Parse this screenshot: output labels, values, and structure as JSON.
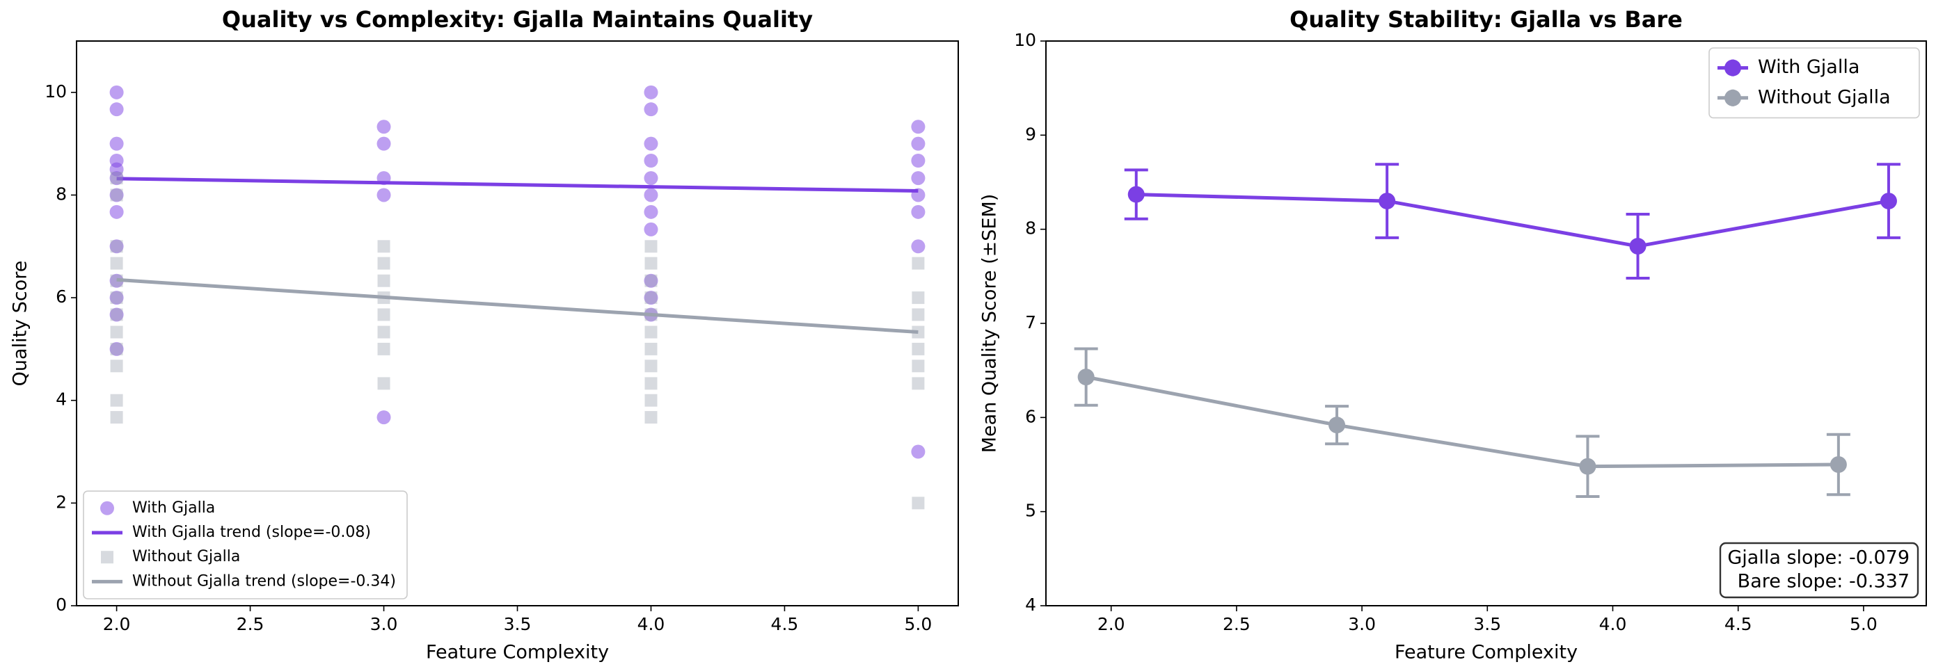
{
  "chart_data": [
    {
      "type": "scatter",
      "title": "Quality vs Complexity: Gjalla Maintains Quality",
      "x_label": "Feature Complexity",
      "y_label": "Quality Score",
      "xlim": [
        1.85,
        5.15
      ],
      "ylim": [
        0,
        11
      ],
      "xticks": [
        {
          "value": 2,
          "label": "2.0"
        },
        {
          "value": 2.5,
          "label": "2.5"
        },
        {
          "value": 3,
          "label": "3.0"
        },
        {
          "value": 3.5,
          "label": "3.5"
        },
        {
          "value": 4,
          "label": "4.0"
        },
        {
          "value": 4.5,
          "label": "4.5"
        },
        {
          "value": 5,
          "label": "5.0"
        }
      ],
      "yticks": [
        0,
        2,
        4,
        6,
        8,
        10
      ],
      "legend": "lower left",
      "series": [
        {
          "name": "With Gjalla",
          "style": "scatter",
          "marker": "circle",
          "color": "#7b3fe4",
          "x": [
            2,
            2,
            2,
            2,
            2,
            2,
            2,
            2,
            2,
            2,
            2,
            2,
            2,
            3,
            3,
            3,
            3,
            3,
            4,
            4,
            4,
            4,
            4,
            4,
            4,
            4,
            4,
            4,
            4,
            5,
            5,
            5,
            5,
            5,
            5,
            5,
            5
          ],
          "values": [
            10,
            9.67,
            9,
            8.67,
            8.5,
            8.33,
            8,
            7.67,
            7,
            6.33,
            6,
            5.67,
            5,
            9.33,
            9,
            8.33,
            8,
            3.67,
            10,
            9.67,
            9,
            8.67,
            8.33,
            8,
            7.67,
            7.33,
            6.33,
            6,
            5.67,
            9.33,
            9,
            8.67,
            8.33,
            8,
            7.67,
            7,
            3
          ]
        },
        {
          "name": "With Gjalla trend (slope=-0.08)",
          "style": "line",
          "color": "#7b3fe4",
          "x": [
            2,
            5
          ],
          "values": [
            8.32,
            8.08
          ]
        },
        {
          "name": "Without Gjalla",
          "style": "scatter",
          "marker": "square",
          "color": "#9ca3af",
          "x": [
            2,
            2,
            2,
            2,
            2,
            2,
            2,
            2,
            2,
            2,
            2,
            2,
            3,
            3,
            3,
            3,
            3,
            3,
            3,
            3,
            4,
            4,
            4,
            4,
            4,
            4,
            4,
            4,
            4,
            4,
            4,
            5,
            5,
            5,
            5,
            5,
            5,
            5,
            5
          ],
          "values": [
            8.33,
            8,
            7,
            6.67,
            6.33,
            6,
            5.67,
            5.33,
            5,
            4.67,
            4,
            3.67,
            7,
            6.67,
            6.33,
            6,
            5.67,
            5.33,
            5,
            4.33,
            7,
            6.67,
            6.33,
            6,
            5.67,
            5.33,
            5,
            4.67,
            4.33,
            4,
            3.67,
            6.67,
            6,
            5.67,
            5.33,
            5,
            4.67,
            4.33,
            2
          ]
        },
        {
          "name": "Without Gjalla trend (slope=-0.34)",
          "style": "line",
          "color": "#9ca3af",
          "x": [
            2,
            5
          ],
          "values": [
            6.35,
            5.33
          ]
        }
      ]
    },
    {
      "type": "errorbar",
      "title": "Quality Stability: Gjalla vs Bare",
      "x_label": "Feature Complexity",
      "y_label": "Mean Quality Score (±SEM)",
      "xlim": [
        1.74,
        5.25
      ],
      "ylim": [
        4,
        10
      ],
      "xticks": [
        {
          "value": 2,
          "label": "2.0"
        },
        {
          "value": 2.5,
          "label": "2.5"
        },
        {
          "value": 3,
          "label": "3.0"
        },
        {
          "value": 3.5,
          "label": "3.5"
        },
        {
          "value": 4,
          "label": "4.0"
        },
        {
          "value": 4.5,
          "label": "4.5"
        },
        {
          "value": 5,
          "label": "5.0"
        }
      ],
      "yticks": [
        4,
        5,
        6,
        7,
        8,
        9,
        10
      ],
      "legend": "upper right",
      "annotation": [
        "Gjalla slope: -0.079",
        "Bare slope: -0.337"
      ],
      "series": [
        {
          "name": "With Gjalla",
          "color": "#7b3fe4",
          "x": [
            2.1,
            3.1,
            4.1,
            5.1
          ],
          "values": [
            8.37,
            8.3,
            7.82,
            8.3
          ],
          "errors": [
            0.26,
            0.39,
            0.34,
            0.39
          ]
        },
        {
          "name": "Without Gjalla",
          "color": "#9ca3af",
          "x": [
            1.9,
            2.9,
            3.9,
            4.9
          ],
          "values": [
            6.43,
            5.92,
            5.48,
            5.5
          ],
          "errors": [
            0.3,
            0.2,
            0.32,
            0.32
          ]
        }
      ]
    }
  ]
}
